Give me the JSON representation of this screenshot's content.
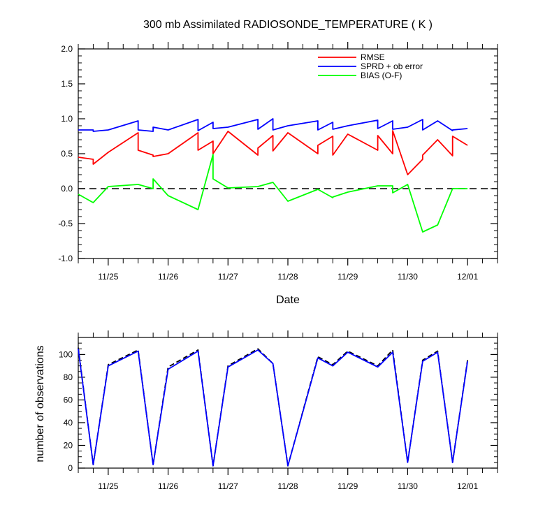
{
  "chart_data": [
    {
      "type": "line",
      "title": "300 mb Assimilated RADIOSONDE_TEMPERATURE ( K )",
      "xlabel": "Date",
      "ylabel": "",
      "x_ticks": [
        "11/25",
        "11/26",
        "11/27",
        "11/28",
        "11/29",
        "11/30",
        "12/01"
      ],
      "ylim": [
        -1.0,
        2.0
      ],
      "y_ticks": [
        "-1.0",
        "-0.5",
        "0.0",
        "0.5",
        "1.0",
        "1.5",
        "2.0"
      ],
      "xlim": [
        0,
        14
      ],
      "reference_line": 0.0,
      "legend_placement": "top-right",
      "series": [
        {
          "name": "RMSE",
          "color": "#ff0000",
          "x": [
            0,
            0.5,
            0.5,
            1,
            2,
            2,
            2.5,
            2.5,
            3,
            4,
            4,
            4.5,
            4.5,
            5,
            6,
            6,
            6.5,
            6.5,
            7,
            8,
            8,
            8.5,
            8.5,
            9,
            10,
            10,
            10.5,
            10.5,
            11,
            11.5,
            11.5,
            12,
            12.5,
            12.5,
            13
          ],
          "y": [
            0.45,
            0.42,
            0.35,
            0.52,
            0.8,
            0.55,
            0.48,
            0.46,
            0.5,
            0.8,
            0.55,
            0.68,
            0.5,
            0.82,
            0.48,
            0.58,
            0.76,
            0.54,
            0.8,
            0.5,
            0.62,
            0.75,
            0.48,
            0.78,
            0.55,
            0.76,
            0.5,
            0.83,
            0.2,
            0.42,
            0.48,
            0.7,
            0.47,
            0.75,
            0.62
          ]
        },
        {
          "name": "SPRD + ob error",
          "color": "#0000ff",
          "x": [
            0,
            0.5,
            0.5,
            1,
            2,
            2,
            2.5,
            2.5,
            3,
            4,
            4,
            4.5,
            4.5,
            5,
            6,
            6,
            6.5,
            6.5,
            7,
            8,
            8,
            8.5,
            8.5,
            9,
            10,
            10,
            10.5,
            10.5,
            11,
            11.5,
            11.5,
            12,
            12.5,
            12.5,
            13
          ],
          "y": [
            0.84,
            0.84,
            0.82,
            0.84,
            0.97,
            0.84,
            0.82,
            0.88,
            0.84,
            0.99,
            0.83,
            0.95,
            0.86,
            0.88,
            0.99,
            0.85,
            1.0,
            0.84,
            0.9,
            0.97,
            0.84,
            0.95,
            0.85,
            0.9,
            0.98,
            0.86,
            0.97,
            0.85,
            0.88,
            0.99,
            0.84,
            0.97,
            0.83,
            0.84,
            0.86
          ]
        },
        {
          "name": "BIAS (O-F)",
          "color": "#00ff00",
          "x": [
            0,
            0.5,
            1,
            2,
            2.5,
            2.5,
            3,
            4,
            4.5,
            4.5,
            5,
            6,
            6.5,
            6.5,
            7,
            8,
            8.5,
            8.5,
            9,
            10,
            10.5,
            10.5,
            11,
            11.5,
            12,
            12.5,
            12.5,
            13
          ],
          "y": [
            -0.08,
            -0.2,
            0.03,
            0.06,
            0.0,
            0.14,
            -0.1,
            -0.3,
            0.49,
            0.14,
            0.01,
            0.03,
            0.09,
            0.09,
            -0.18,
            -0.01,
            -0.13,
            -0.12,
            -0.05,
            0.04,
            0.04,
            -0.06,
            0.06,
            -0.62,
            -0.52,
            0.0,
            0.0,
            0.0
          ]
        }
      ]
    },
    {
      "type": "line",
      "title": "",
      "xlabel": "",
      "ylabel": "number of observations",
      "x_ticks": [
        "11/25",
        "11/26",
        "11/27",
        "11/28",
        "11/29",
        "11/30",
        "12/01"
      ],
      "ylim": [
        0,
        115
      ],
      "y_ticks": [
        "0",
        "20",
        "40",
        "60",
        "80",
        "100"
      ],
      "xlim": [
        0,
        14
      ],
      "series": [
        {
          "style": "dashed",
          "color": "#000000",
          "x": [
            0,
            0.5,
            1,
            2,
            2.5,
            3,
            4,
            4.5,
            5,
            6,
            6.5,
            7,
            8,
            8.5,
            9,
            10,
            10.5,
            11,
            11.5,
            12,
            12.5,
            13
          ],
          "y": [
            106,
            3,
            91,
            104,
            3,
            89,
            104,
            2,
            90,
            105,
            92,
            2,
            98,
            91,
            103,
            90,
            104,
            5,
            95,
            103,
            5,
            95
          ]
        },
        {
          "style": "solid",
          "color": "#0000ff",
          "x": [
            0,
            0.5,
            1,
            2,
            2.5,
            3,
            4,
            4.5,
            5,
            6,
            6.5,
            7,
            8,
            8.5,
            9,
            10,
            10.5,
            11,
            11.5,
            12,
            12.5,
            13
          ],
          "y": [
            105,
            3,
            90,
            103,
            3,
            87,
            103,
            2,
            89,
            104,
            92,
            2,
            97,
            90,
            102,
            89,
            102,
            5,
            94,
            102,
            5,
            94
          ]
        }
      ]
    }
  ]
}
